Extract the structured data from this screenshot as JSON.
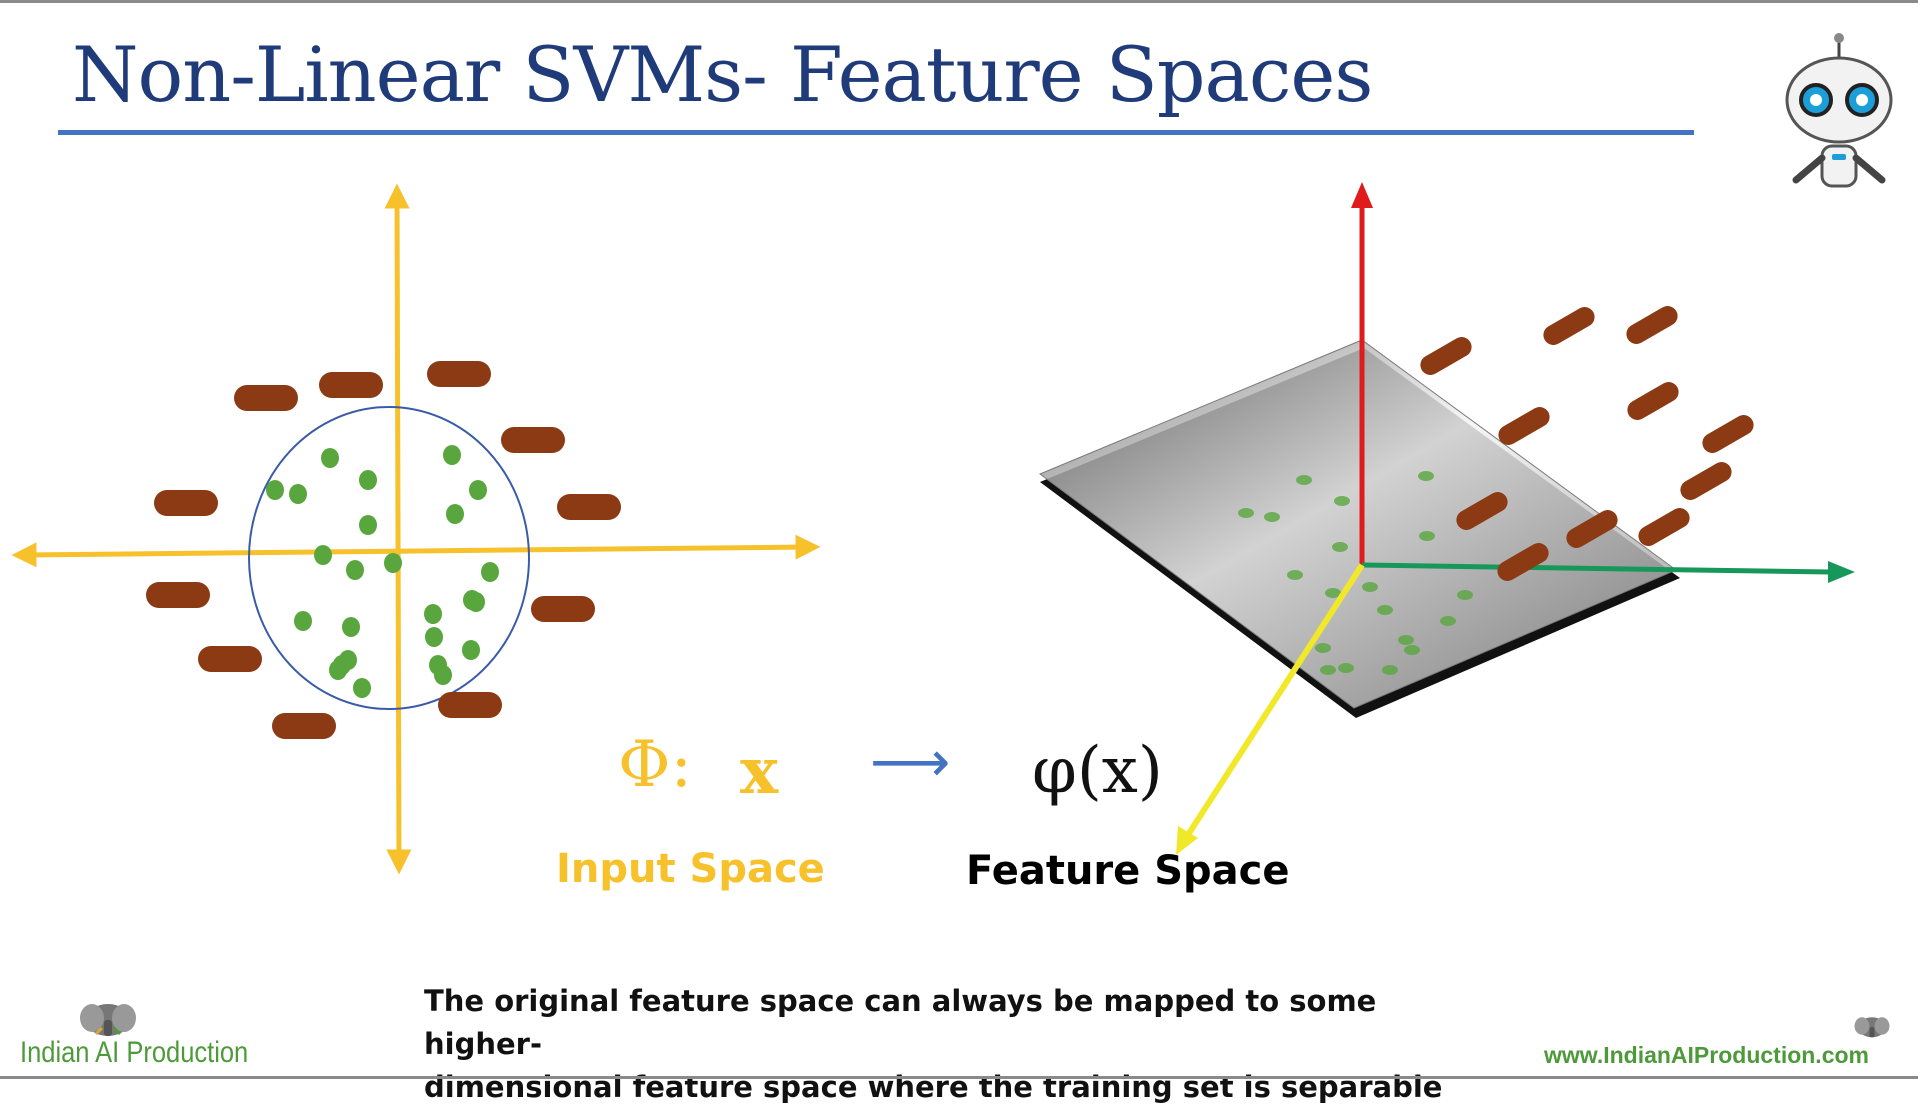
{
  "slide": {
    "title": "Non-Linear SVMs- Feature Spaces",
    "caption_line1": "The original feature space can always be mapped to some higher-",
    "caption_line2": "dimensional feature space where the training set is separable"
  },
  "mapping": {
    "phi_symbol": "Φ:",
    "input_var": "x",
    "arrow": "⟶",
    "output_expr": "φ(x)"
  },
  "labels": {
    "input_space": "Input Space",
    "feature_space": "Feature Space"
  },
  "branding": {
    "left_text": "Indian AI Production",
    "right_text": "www.IndianAIProduction.com"
  },
  "colors": {
    "title": "#1f3b7a",
    "rule": "#4472c4",
    "input_axes": "#f7c12b",
    "green_points": "#5aa63e",
    "brown_points": "#8b3a14",
    "z_axis": "#e01b1b",
    "y_axis": "#17985a",
    "x_axis": "#f2e82a",
    "brand": "#4e9a3a"
  },
  "icons": {
    "robot": "robot-mascot-icon",
    "logo": "elephant-logo-icon"
  }
}
